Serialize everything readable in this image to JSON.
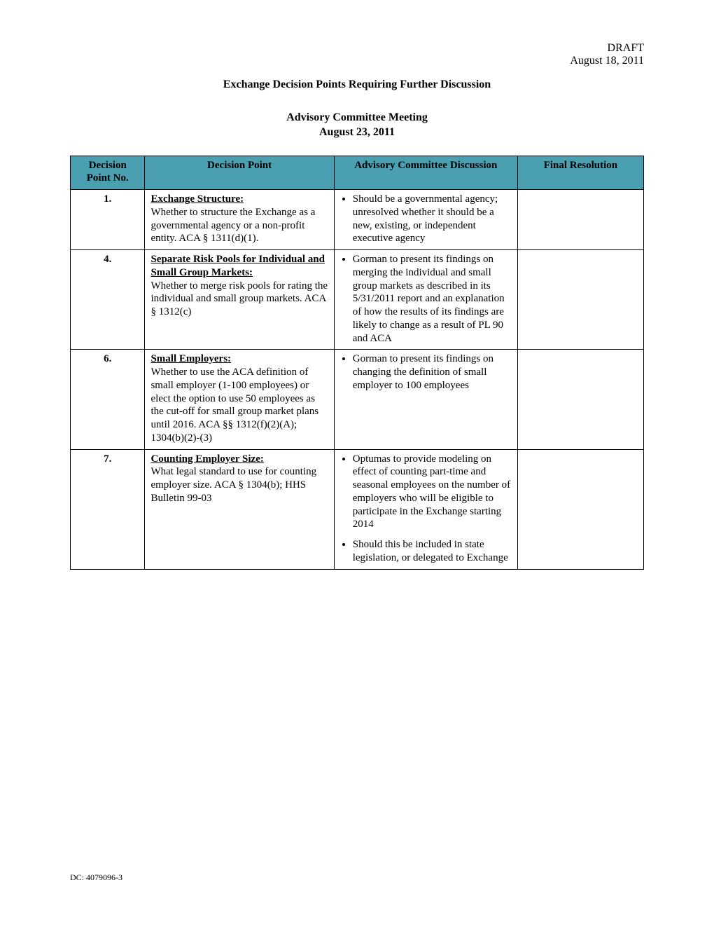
{
  "header": {
    "draft": "DRAFT",
    "date": "August 18, 2011"
  },
  "title": "Exchange Decision Points Requiring Further Discussion",
  "subtitle_line1": "Advisory Committee Meeting",
  "subtitle_line2": "August 23, 2011",
  "table": {
    "header_bg": "#4a9fb0",
    "columns": {
      "c1": "Decision Point No.",
      "c2": "Decision Point",
      "c3": "Advisory Committee Discussion",
      "c4": "Final Resolution"
    },
    "rows": [
      {
        "no": "1.",
        "topic": "Exchange Structure:",
        "body": "Whether to structure the Exchange as a governmental agency or a non-profit entity. ACA § 1311(d)(1).",
        "discussion": [
          "Should be a governmental agency; unresolved whether it should be a new, existing, or independent executive agency"
        ],
        "resolution": ""
      },
      {
        "no": "4.",
        "topic": "Separate Risk Pools for Individual and Small Group Markets:",
        "body": "Whether to merge risk pools for rating the individual and small group markets.  ACA § 1312(c)",
        "discussion": [
          "Gorman to present its findings on merging the individual and small group markets as described in its 5/31/2011 report and an explanation of how the results of its findings are likely to change as a result of PL 90 and ACA"
        ],
        "resolution": ""
      },
      {
        "no": "6.",
        "topic": "Small Employers:",
        "body": "Whether to use the ACA definition of small employer (1-100 employees) or elect the option to use 50 employees as the cut-off for small group market plans until 2016.  ACA §§ 1312(f)(2)(A); 1304(b)(2)-(3)",
        "discussion": [
          "Gorman to present its findings on changing the definition of small employer to 100 employees"
        ],
        "resolution": ""
      },
      {
        "no": "7.",
        "topic": "Counting Employer Size:",
        "body": "What legal standard to use for counting employer size.  ACA § 1304(b); HHS Bulletin 99-03",
        "discussion": [
          "Optumas to provide modeling on effect of counting part-time and seasonal employees on the number of employers who will be eligible to participate in the Exchange starting 2014",
          "Should this be included in state legislation, or delegated to Exchange"
        ],
        "resolution": ""
      }
    ]
  },
  "footer": "DC: 4079096-3"
}
